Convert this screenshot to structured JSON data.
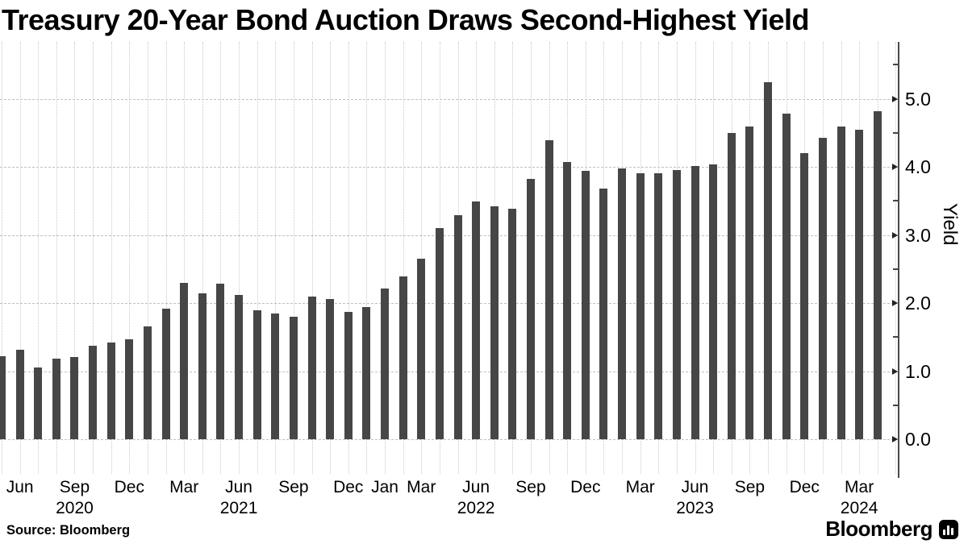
{
  "title": "Treasury 20-Year Bond Auction Draws Second-Highest Yield",
  "source": {
    "text": "Source: Bloomberg"
  },
  "brand": {
    "name": "Bloomberg",
    "icon": "bar-chart-icon"
  },
  "chart_data": {
    "type": "bar",
    "title": "Treasury 20-Year Bond Auction Draws Second-Highest Yield",
    "xlabel": "",
    "ylabel": "Yield",
    "ylim": [
      0.0,
      5.8
    ],
    "grid": true,
    "legend": "none",
    "bar_color": "#464646",
    "y_ticks": [
      {
        "value": 0.0,
        "label": "0.0"
      },
      {
        "value": 1.0,
        "label": "1.0"
      },
      {
        "value": 2.0,
        "label": "2.0"
      },
      {
        "value": 3.0,
        "label": "3.0"
      },
      {
        "value": 4.0,
        "label": "4.0"
      },
      {
        "value": 5.0,
        "label": "5.0"
      }
    ],
    "y_minor_ticks": [
      0.5,
      1.5,
      2.5,
      3.5,
      4.5,
      5.5
    ],
    "values": [
      1.22,
      1.314,
      1.059,
      1.185,
      1.213,
      1.37,
      1.422,
      1.47,
      1.657,
      1.92,
      2.29,
      2.144,
      2.286,
      2.12,
      1.89,
      1.85,
      1.795,
      2.1,
      2.065,
      1.87,
      1.942,
      2.21,
      2.396,
      2.651,
      3.095,
      3.29,
      3.488,
      3.42,
      3.38,
      3.82,
      4.395,
      4.072,
      3.935,
      3.678,
      3.977,
      3.909,
      3.91,
      3.954,
      4.01,
      4.036,
      4.499,
      4.592,
      5.245,
      4.78,
      4.199,
      4.423,
      4.595,
      4.542,
      4.818
    ],
    "x_tick_labels": [
      {
        "i": 1,
        "month": "Jun"
      },
      {
        "i": 4,
        "month": "Sep",
        "year": "2020"
      },
      {
        "i": 7,
        "month": "Dec"
      },
      {
        "i": 10,
        "month": "Mar"
      },
      {
        "i": 13,
        "month": "Jun",
        "year": "2021"
      },
      {
        "i": 16,
        "month": "Sep"
      },
      {
        "i": 19,
        "month": "Dec"
      },
      {
        "i": 21,
        "month": "Jan"
      },
      {
        "i": 23,
        "month": "Mar"
      },
      {
        "i": 26,
        "month": "Jun",
        "year": "2022"
      },
      {
        "i": 29,
        "month": "Sep"
      },
      {
        "i": 32,
        "month": "Dec"
      },
      {
        "i": 35,
        "month": "Mar"
      },
      {
        "i": 38,
        "month": "Jun",
        "year": "2023"
      },
      {
        "i": 41,
        "month": "Sep"
      },
      {
        "i": 44,
        "month": "Dec"
      },
      {
        "i": 47,
        "month": "Mar",
        "year": "2024"
      }
    ]
  }
}
